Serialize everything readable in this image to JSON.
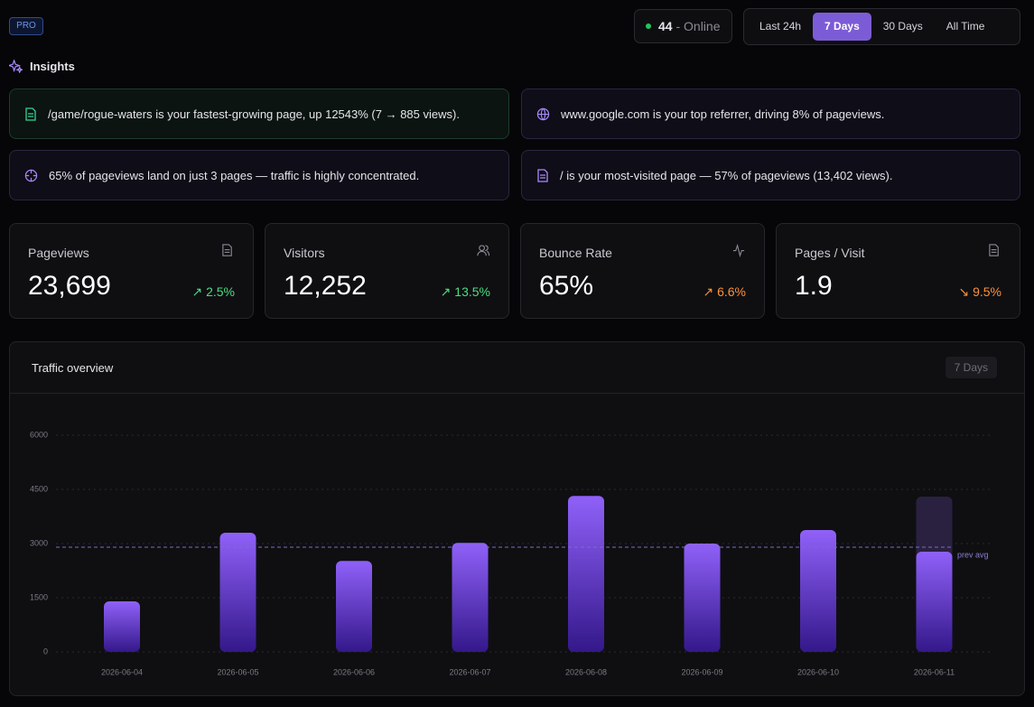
{
  "header": {
    "badge": "PRO",
    "online_count": "44",
    "online_label": "- Online",
    "ranges": [
      "Last 24h",
      "7 Days",
      "30 Days",
      "All Time"
    ],
    "active_range": 1
  },
  "insights": {
    "title": "Insights",
    "items": [
      "/game/rogue-waters is your fastest-growing page, up 12543% (7 → 885 views).",
      "www.google.com is your top referrer, driving 8% of pageviews.",
      "65% of pageviews land on just 3 pages — traffic is highly concentrated.",
      "/ is your most-visited page — 57% of pageviews (13,402 views)."
    ]
  },
  "stats": [
    {
      "label": "Pageviews",
      "value": "23,699",
      "change": "↗ 2.5%",
      "color": "#4ade80"
    },
    {
      "label": "Visitors",
      "value": "12,252",
      "change": "↗ 13.5%",
      "color": "#4ade80"
    },
    {
      "label": "Bounce Rate",
      "value": "65%",
      "change": "↗ 6.6%",
      "color": "#fb923c"
    },
    {
      "label": "Pages / Visit",
      "value": "1.9",
      "change": "↘ 9.5%",
      "color": "#fb923c"
    }
  ],
  "chart_data": {
    "type": "bar",
    "title": "Traffic overview",
    "badge": "7 Days",
    "categories": [
      "2026-06-04",
      "2026-06-05",
      "2026-06-06",
      "2026-06-07",
      "2026-06-08",
      "2026-06-09",
      "2026-06-10",
      "2026-06-11"
    ],
    "values": [
      1400,
      3300,
      2520,
      3020,
      4320,
      3000,
      3375,
      2775
    ],
    "projection_values": [
      null,
      null,
      null,
      null,
      null,
      null,
      null,
      4300
    ],
    "color": "#8b5cf6",
    "projection_color": "#2a2140",
    "reference_line": {
      "value": 2900,
      "label": "prev avg"
    },
    "ylim": [
      0,
      6000
    ],
    "yticks": [
      0,
      1500,
      3000,
      4500,
      6000
    ],
    "grid": true
  }
}
